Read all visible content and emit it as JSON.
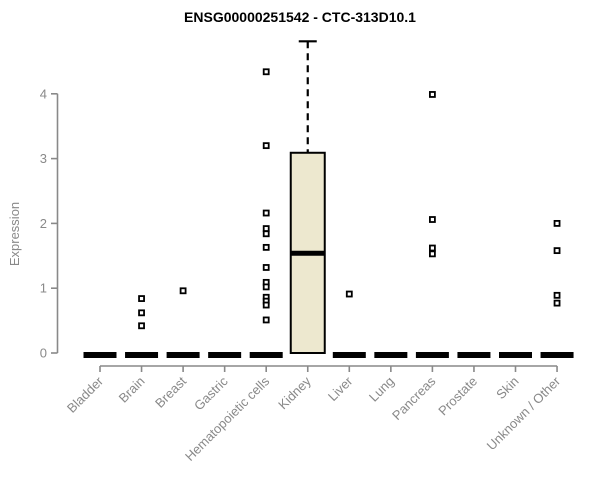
{
  "chart_data": {
    "type": "box",
    "title": "ENSG00000251542 - CTC-313D10.1",
    "xlabel": "",
    "ylabel": "Expression",
    "ylim": [
      0,
      4.9
    ],
    "yticks": [
      0,
      1,
      2,
      3,
      4
    ],
    "grid": false,
    "legend": "none",
    "categories": [
      "Bladder",
      "Brain",
      "Breast",
      "Gastric",
      "Hematopoietic cells",
      "Kidney",
      "Liver",
      "Lung",
      "Pancreas",
      "Prostate",
      "Skin",
      "Unknown / Other"
    ],
    "boxes": [
      {
        "category": "Bladder",
        "q1": 0,
        "median": 0,
        "q3": 0,
        "whisker_low": 0,
        "whisker_high": 0,
        "points": []
      },
      {
        "category": "Brain",
        "q1": 0,
        "median": 0,
        "q3": 0,
        "whisker_low": 0,
        "whisker_high": 0,
        "points": [
          0.84,
          0.62,
          0.42
        ]
      },
      {
        "category": "Breast",
        "q1": 0,
        "median": 0,
        "q3": 0,
        "whisker_low": 0,
        "whisker_high": 0,
        "points": [
          0.96
        ]
      },
      {
        "category": "Gastric",
        "q1": 0,
        "median": 0,
        "q3": 0,
        "whisker_low": 0,
        "whisker_high": 0,
        "points": []
      },
      {
        "category": "Hematopoietic cells",
        "q1": 0,
        "median": 0,
        "q3": 0,
        "whisker_low": 0,
        "whisker_high": 0,
        "points": [
          4.34,
          3.2,
          2.16,
          1.92,
          1.84,
          1.63,
          1.32,
          1.09,
          1.02,
          0.86,
          0.8,
          0.74,
          0.51
        ]
      },
      {
        "category": "Kidney",
        "q1": 0,
        "median": 1.54,
        "q3": 3.09,
        "whisker_low": 0,
        "whisker_high": 4.81,
        "points": []
      },
      {
        "category": "Liver",
        "q1": 0,
        "median": 0,
        "q3": 0,
        "whisker_low": 0,
        "whisker_high": 0,
        "points": [
          0.91
        ]
      },
      {
        "category": "Lung",
        "q1": 0,
        "median": 0,
        "q3": 0,
        "whisker_low": 0,
        "whisker_high": 0,
        "points": []
      },
      {
        "category": "Pancreas",
        "q1": 0,
        "median": 0,
        "q3": 0,
        "whisker_low": 0,
        "whisker_high": 0,
        "points": [
          3.99,
          2.06,
          1.62,
          1.53
        ]
      },
      {
        "category": "Prostate",
        "q1": 0,
        "median": 0,
        "q3": 0,
        "whisker_low": 0,
        "whisker_high": 0,
        "points": []
      },
      {
        "category": "Skin",
        "q1": 0,
        "median": 0,
        "q3": 0,
        "whisker_low": 0,
        "whisker_high": 0,
        "points": []
      },
      {
        "category": "Unknown / Other",
        "q1": 0,
        "median": 0,
        "q3": 0,
        "whisker_low": 0,
        "whisker_high": 0,
        "points": [
          2.0,
          1.58,
          0.89,
          0.77
        ]
      }
    ],
    "point_marker": "open-square",
    "style": {
      "box_fill": "#ede8cf",
      "ink": "#000000",
      "axis_color": "#898989",
      "background": "#ffffff"
    }
  }
}
